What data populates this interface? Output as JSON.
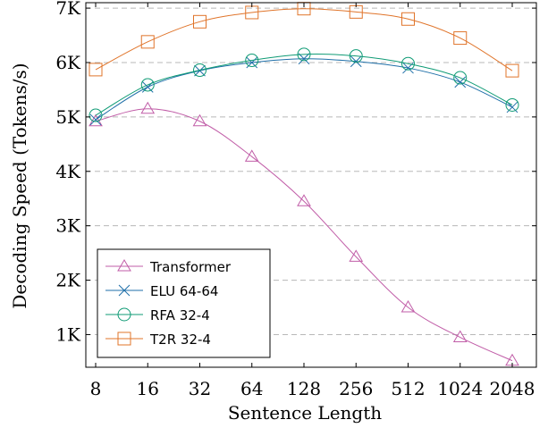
{
  "chart_data": {
    "type": "line",
    "xlabel": "Sentence Length",
    "ylabel": "Decoding Speed (Tokens/s)",
    "categories": [
      "8",
      "16",
      "32",
      "64",
      "128",
      "256",
      "512",
      "1024",
      "2048"
    ],
    "ylim": [
      400,
      7100
    ],
    "yticks": [
      1000,
      2000,
      3000,
      4000,
      5000,
      6000,
      7000
    ],
    "ytick_labels": [
      "1K",
      "2K",
      "3K",
      "4K",
      "5K",
      "6K",
      "7K"
    ],
    "grid": "horizontal dashed",
    "legend_position": "bottom-left",
    "series": [
      {
        "name": "Transformer",
        "marker": "triangle",
        "color": "#c15ea8",
        "values": [
          4920,
          5150,
          4920,
          4270,
          3450,
          2430,
          1500,
          950,
          520
        ]
      },
      {
        "name": "ELU 64-64",
        "marker": "x",
        "color": "#1f6fa8",
        "values": [
          4950,
          5550,
          5850,
          6000,
          6070,
          6020,
          5900,
          5640,
          5180
        ]
      },
      {
        "name": "RFA 32-4",
        "marker": "circle",
        "color": "#0f9b75",
        "values": [
          5030,
          5590,
          5860,
          6040,
          6150,
          6120,
          5980,
          5720,
          5220
        ]
      },
      {
        "name": "T2R 32-4",
        "marker": "square",
        "color": "#e0742a",
        "values": [
          5870,
          6380,
          6750,
          6920,
          6990,
          6930,
          6800,
          6450,
          5850
        ]
      }
    ]
  }
}
